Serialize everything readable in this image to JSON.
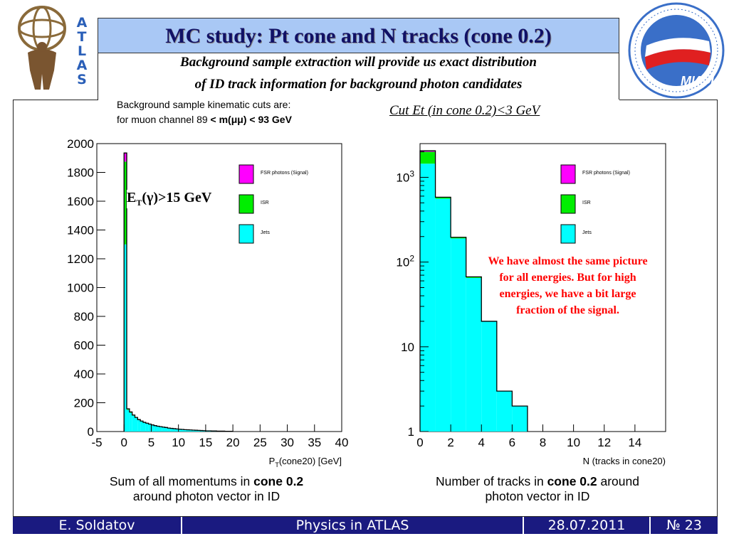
{
  "slide": {
    "title": "MC study: Pt cone and N tracks (cone 0.2)",
    "subtitle_line1": "Background sample extraction will provide us exact distribution",
    "subtitle_line2": "of ID track information for background photon candidates",
    "cuts_line1": "Background sample kinematic cuts are:",
    "cuts_line2_prefix": "for muon channel 89 ",
    "cuts_line2_bold": "< m(μμ) < 93 GeV",
    "cut_et": "Cut Et (in cone 0.2)<3 GeV",
    "left_logo_letters": [
      "A",
      "T",
      "L",
      "A",
      "S"
    ],
    "right_logo_text": "НАЦИОНАЛЬНЫЙ ИССЛЕДОВАТЕЛЬСКИЙ ЯДЕРНЫЙ УНИВЕРСИТЕТ МИФИ",
    "et_label": "ET(γ)>15 GeV",
    "note": "We have almost the same picture for all energies. But for high energies, we have a bit large fraction of the signal.",
    "caption_left_pre": "Sum of all momentums in ",
    "caption_left_bold": "cone 0.2",
    "caption_left_post": "around photon vector in ID",
    "caption_right_pre": "Number of tracks in ",
    "caption_right_bold": "cone 0.2",
    "caption_right_post": " around",
    "caption_right_line2": "photon vector in ID",
    "footer": {
      "author": "E. Soldatov",
      "talk": "Physics in ATLAS",
      "date": "28.07.2011",
      "page": "№ 23"
    }
  },
  "colors": {
    "fsr": "#ff00ff",
    "isr": "#00ee00",
    "jets": "#00ffff",
    "title_bg": "#a9c8f5",
    "footer_bg": "#1a1a80"
  },
  "chart_data": [
    {
      "type": "bar",
      "stacked": true,
      "xlabel": "PT(cone20) [GeV]",
      "ylabel": "",
      "xlim": [
        -5,
        40
      ],
      "ylim": [
        0,
        2000
      ],
      "x_ticks": [
        -5,
        0,
        5,
        10,
        15,
        20,
        25,
        30,
        35,
        40
      ],
      "y_ticks": [
        0,
        200,
        400,
        600,
        800,
        1000,
        1200,
        1400,
        1600,
        1800,
        2000
      ],
      "legend": [
        "FSR photons (Signal)",
        "ISR",
        "Jets"
      ],
      "legend_position": "top-right",
      "bin_edges": [
        0,
        0.5,
        1,
        1.5,
        2,
        2.5,
        3,
        3.5,
        4,
        4.5,
        5,
        5.5,
        6,
        6.5,
        7,
        7.5,
        8,
        8.5,
        9,
        9.5,
        10,
        10.5,
        11,
        11.5,
        12,
        12.5,
        13,
        13.5,
        14,
        14.5,
        15,
        15.5,
        16,
        16.5,
        17,
        17.5,
        18,
        18.5,
        19,
        19.5,
        20
      ],
      "series": [
        {
          "name": "Jets",
          "values": [
            1300,
            150,
            130,
            110,
            95,
            80,
            70,
            62,
            56,
            50,
            45,
            40,
            36,
            33,
            30,
            27,
            24,
            22,
            20,
            18,
            16,
            15,
            13,
            12,
            11,
            10,
            9,
            8,
            7,
            6,
            5,
            5,
            4,
            4,
            3,
            3,
            3,
            2,
            2,
            2
          ]
        },
        {
          "name": "ISR",
          "values": [
            575,
            5,
            4,
            3,
            2,
            2,
            2,
            1,
            1,
            1,
            1,
            1,
            1,
            1,
            1,
            1,
            0,
            0,
            0,
            0,
            0,
            0,
            0,
            0,
            0,
            0,
            0,
            0,
            0,
            0,
            0,
            0,
            0,
            0,
            0,
            0,
            0,
            0,
            0,
            0
          ]
        },
        {
          "name": "FSR photons (Signal)",
          "values": [
            60,
            3,
            2,
            2,
            1,
            1,
            1,
            1,
            1,
            1,
            0,
            0,
            0,
            0,
            0,
            0,
            0,
            0,
            0,
            0,
            0,
            0,
            0,
            0,
            0,
            0,
            0,
            0,
            0,
            0,
            0,
            0,
            0,
            0,
            0,
            0,
            0,
            0,
            0,
            0
          ]
        }
      ]
    },
    {
      "type": "bar",
      "stacked": true,
      "log_y": true,
      "xlabel": "N (tracks in cone20)",
      "ylabel": "",
      "xlim": [
        0,
        16
      ],
      "ylim": [
        1,
        2500
      ],
      "x_ticks": [
        0,
        2,
        4,
        6,
        8,
        10,
        12,
        14
      ],
      "y_ticks": [
        1,
        10,
        100,
        1000
      ],
      "y_tick_labels": [
        "1",
        "10",
        "10^2",
        "10^3"
      ],
      "legend": [
        "FSR photons (Signal)",
        "ISR",
        "Jets"
      ],
      "legend_position": "top-right",
      "bin_edges": [
        0,
        1,
        2,
        3,
        4,
        5,
        6,
        7
      ],
      "series": [
        {
          "name": "Jets",
          "values": [
            1450,
            560,
            190,
            65,
            20,
            3,
            2
          ]
        },
        {
          "name": "ISR",
          "values": [
            550,
            20,
            5,
            2,
            0,
            0,
            0
          ]
        },
        {
          "name": "FSR photons (Signal)",
          "values": [
            60,
            3,
            1,
            0,
            0,
            0,
            0
          ]
        }
      ]
    }
  ]
}
